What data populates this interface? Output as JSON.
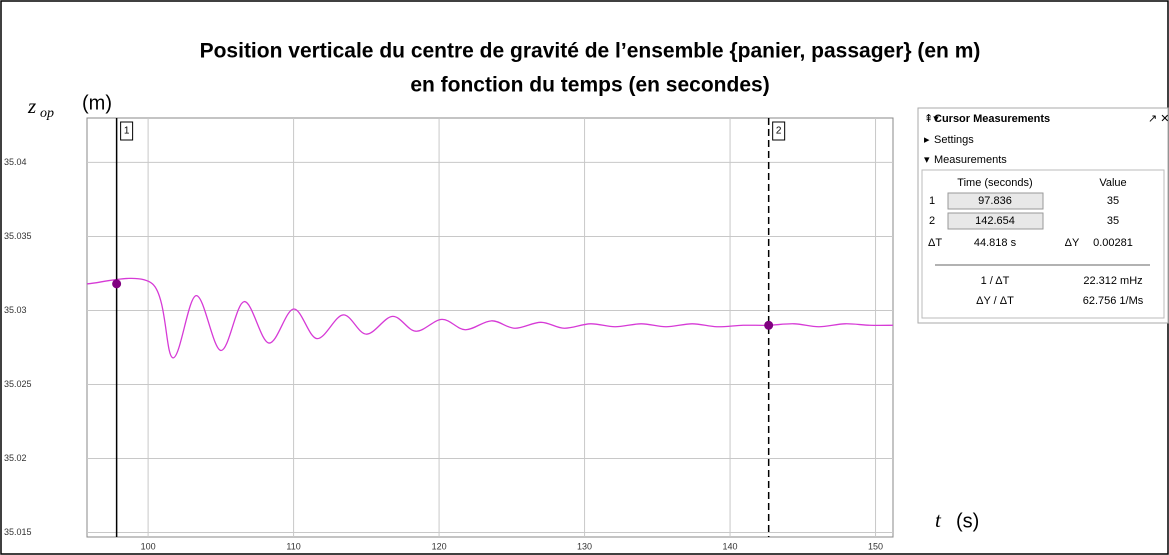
{
  "chart_data": {
    "type": "line",
    "title": "Position verticale du centre de gravité de l’ensemble {panier, passager} (en m)",
    "subtitle": "en fonction du temps (en secondes)",
    "y_label": "z",
    "y_label_sub": "op",
    "y_label_unit": "(m)",
    "x_label": "t",
    "x_label_unit": "(s)",
    "xlim": [
      95.8,
      151.2
    ],
    "ylim": [
      35.0147,
      35.043
    ],
    "xticks": [
      100,
      110,
      120,
      130,
      140,
      150
    ],
    "yticks": [
      35.015,
      35.02,
      35.025,
      35.03,
      35.035,
      35.04
    ],
    "grid": true,
    "series": [
      {
        "color": "#d63ad6",
        "x": [
          95.8,
          100.3,
          101.7,
          103.3,
          105,
          106.6,
          108.3,
          110,
          111.6,
          113.4,
          115,
          116.8,
          118.4,
          120.2,
          121.8,
          123.6,
          125.2,
          127,
          128.6,
          130.4,
          132.1,
          133.9,
          135.6,
          137.4,
          139.1,
          140.9,
          142.6,
          144.4,
          146.1,
          147.9,
          149.6,
          151.2
        ],
        "values": [
          35.0318,
          35.0318,
          35.0268,
          35.031,
          35.0273,
          35.0306,
          35.0278,
          35.0301,
          35.0281,
          35.0297,
          35.0284,
          35.0296,
          35.0286,
          35.0294,
          35.0287,
          35.0293,
          35.0288,
          35.0292,
          35.0288,
          35.0291,
          35.0289,
          35.0291,
          35.0289,
          35.0291,
          35.0289,
          35.029,
          35.029,
          35.0291,
          35.0289,
          35.0291,
          35.029,
          35.029
        ]
      }
    ],
    "cursors": [
      {
        "label": "1",
        "x": 97.836,
        "y": 35.0318,
        "dashed": false
      },
      {
        "label": "2",
        "x": 142.654,
        "y": 35.029,
        "dashed": true
      }
    ]
  },
  "cursor_panel": {
    "title": "Cursor Measurements",
    "settings": "Settings",
    "measurements": "Measurements",
    "headers": [
      "Time (seconds)",
      "Value"
    ],
    "rows": [
      [
        "1",
        "97.836",
        "35"
      ],
      [
        "2",
        "142.654",
        "35"
      ]
    ],
    "delta": [
      "ΔT",
      "44.818 s",
      "ΔY",
      "0.00281"
    ],
    "derived": [
      [
        "1 / ΔT",
        "22.312 mHz"
      ],
      [
        "ΔY / ΔT",
        "62.756 1/Ms"
      ]
    ]
  }
}
